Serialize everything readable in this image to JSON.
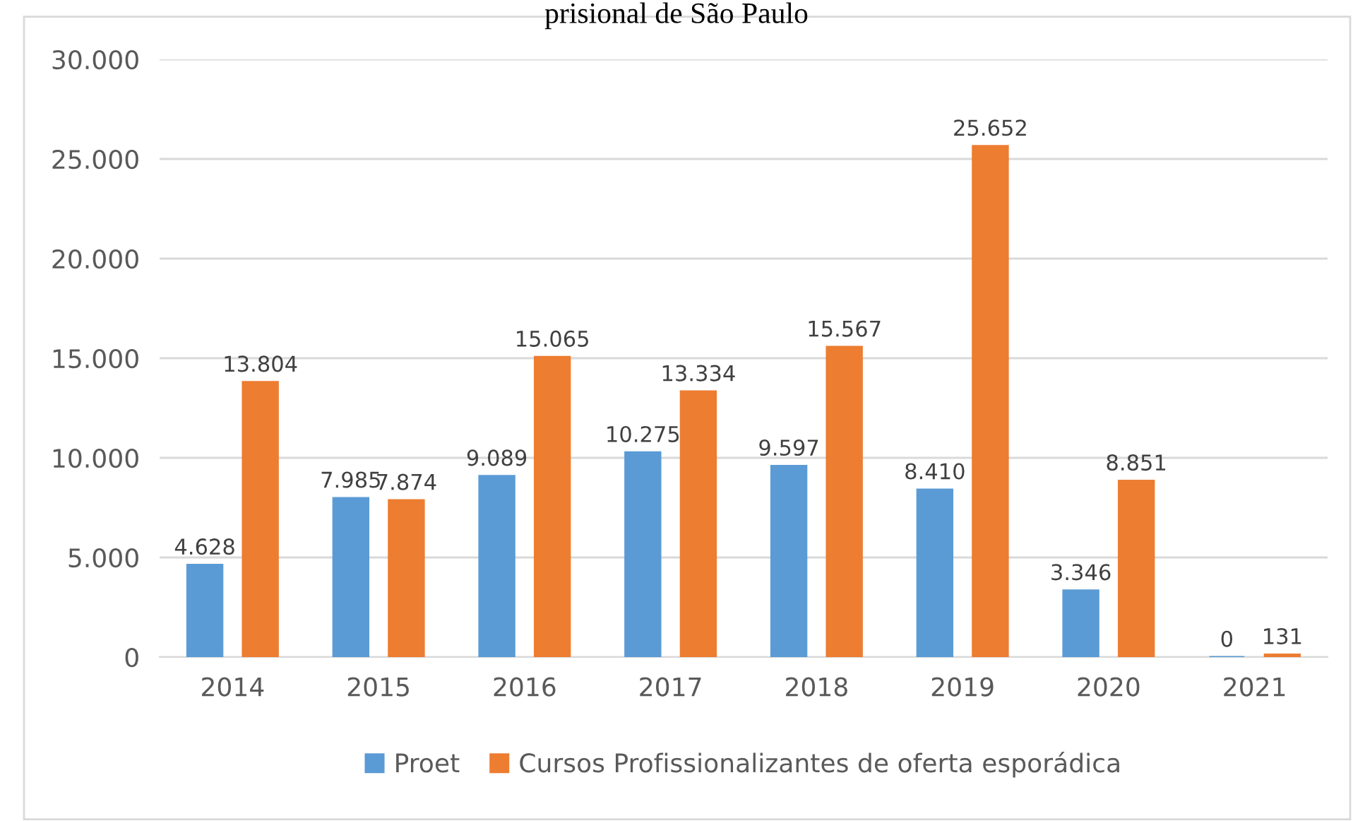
{
  "chart_data": {
    "type": "bar",
    "title": "prisional de São Paulo",
    "categories": [
      "2014",
      "2015",
      "2016",
      "2017",
      "2018",
      "2019",
      "2020",
      "2021"
    ],
    "series": [
      {
        "name": "Proet",
        "color": "#5b9bd5",
        "values": [
          4628,
          7985,
          9089,
          10275,
          9597,
          8410,
          3346,
          0
        ],
        "value_labels": [
          "4.628",
          "7.985",
          "9.089",
          "10.275",
          "9.597",
          "8.410",
          "3.346",
          "0"
        ]
      },
      {
        "name": "Cursos Profissionalizantes de oferta esporádica",
        "color": "#ed7d31",
        "values": [
          13804,
          7874,
          15065,
          13334,
          15567,
          25652,
          8851,
          131
        ],
        "value_labels": [
          "13.804",
          "7.874",
          "15.065",
          "13.334",
          "15.567",
          "25.652",
          "8.851",
          "131"
        ]
      }
    ],
    "ylim": [
      0,
      30000
    ],
    "yticks": [
      {
        "value": 0,
        "label": "0"
      },
      {
        "value": 5000,
        "label": "5.000"
      },
      {
        "value": 10000,
        "label": "10.000"
      },
      {
        "value": 15000,
        "label": "15.000"
      },
      {
        "value": 20000,
        "label": "20.000"
      },
      {
        "value": 25000,
        "label": "25.000"
      },
      {
        "value": 30000,
        "label": "30.000"
      }
    ],
    "grid": "y",
    "legend": "bottom"
  }
}
